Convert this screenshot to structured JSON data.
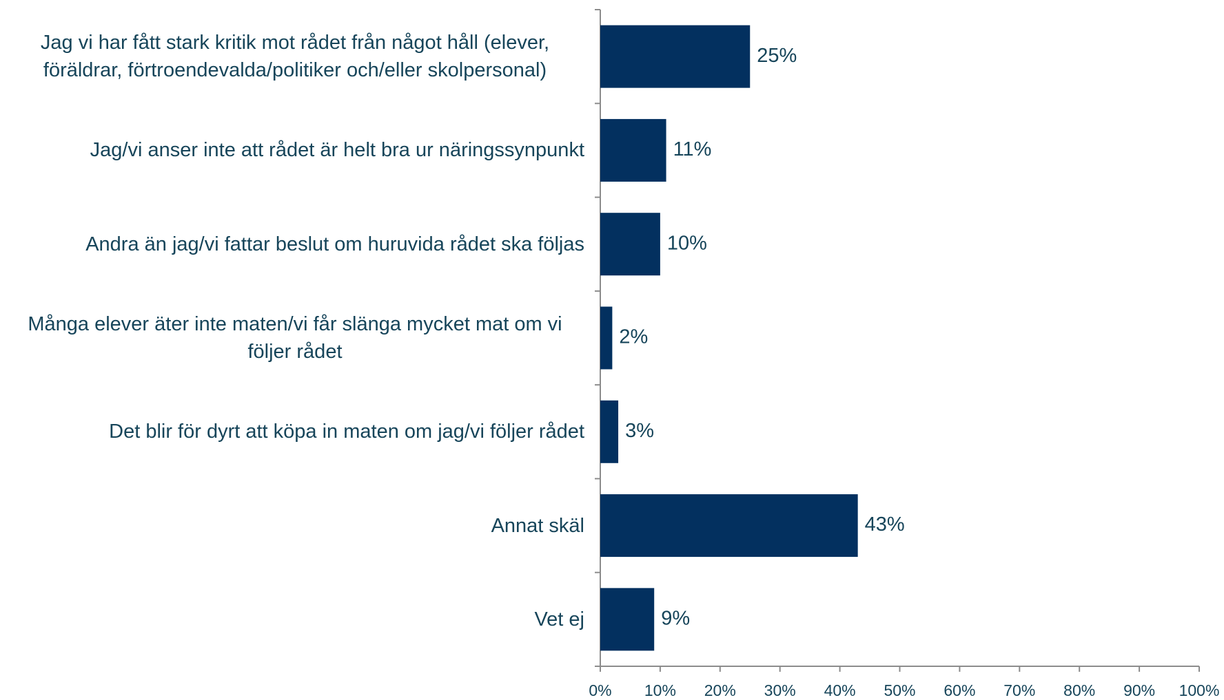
{
  "chart_data": {
    "type": "hbar",
    "categories": [
      "Jag vi har fått stark kritik mot rådet från något håll (elever, föräldrar, förtroendevalda/politiker och/eller skolpersonal)",
      "Jag/vi anser inte att rådet är helt bra ur näringssynpunkt",
      "Andra än jag/vi fattar beslut om huruvida rådet ska följas",
      "Många elever äter inte maten/vi får slänga mycket mat om vi följer rådet",
      "Det blir för dyrt att köpa in maten om jag/vi följer rådet",
      "Annat skäl",
      "Vet ej"
    ],
    "values": [
      25,
      11,
      10,
      2,
      3,
      43,
      9
    ],
    "value_labels": [
      "25%",
      "11%",
      "10%",
      "2%",
      "3%",
      "43%",
      "9%"
    ],
    "color": "#03305f",
    "xlim": [
      0,
      100
    ],
    "xticks": [
      {
        "value": 0,
        "label": "0%"
      },
      {
        "value": 10,
        "label": "10%"
      },
      {
        "value": 20,
        "label": "20%"
      },
      {
        "value": 30,
        "label": "30%"
      },
      {
        "value": 40,
        "label": "40%"
      },
      {
        "value": 50,
        "label": "50%"
      },
      {
        "value": 60,
        "label": "60%"
      },
      {
        "value": 70,
        "label": "70%"
      },
      {
        "value": 80,
        "label": "80%"
      },
      {
        "value": 90,
        "label": "90%"
      },
      {
        "value": 100,
        "label": "100%"
      }
    ],
    "grid": false
  }
}
